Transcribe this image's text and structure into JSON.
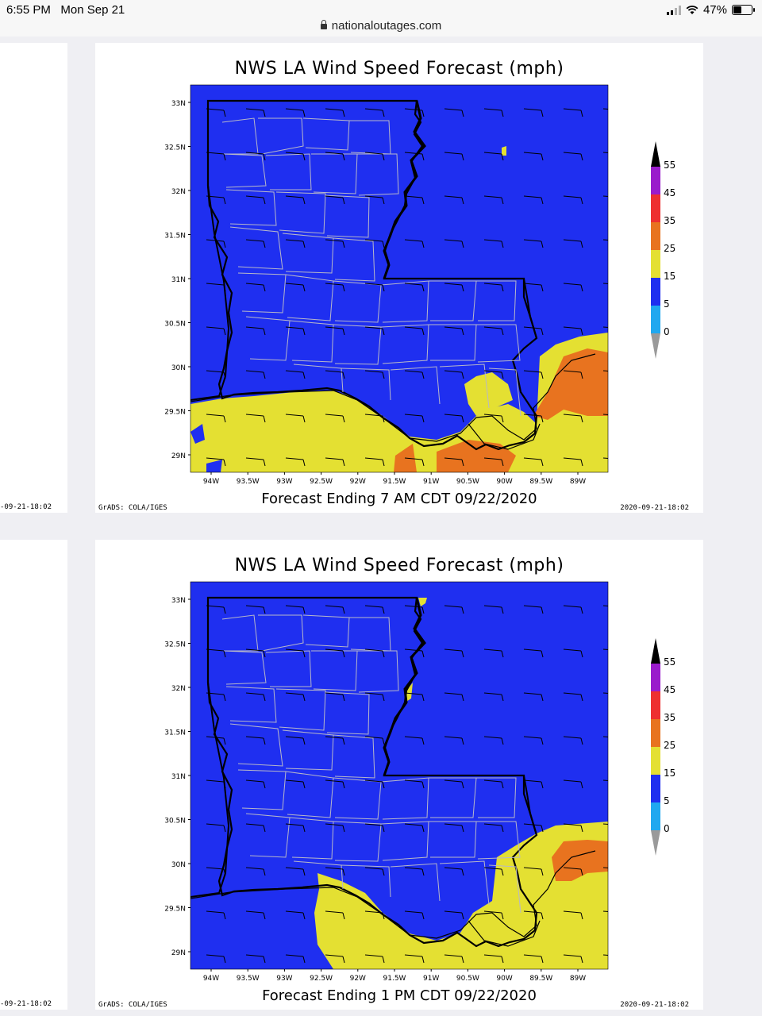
{
  "status_bar": {
    "time": "6:55 PM",
    "date": "Mon Sep 21",
    "battery": "47%",
    "battery_level": 0.47
  },
  "browser": {
    "url": "nationaloutages.com"
  },
  "colors": {
    "blue": "#1f2ff0",
    "yellow": "#e4e032",
    "orange": "#e8731f",
    "red": "#ee3030",
    "purple": "#9a1ccc",
    "cyan": "#20a8f0",
    "black": "#000000",
    "grey": "#9a9a9a"
  },
  "maps": [
    {
      "title": "NWS LA Wind Speed Forecast (mph)",
      "footer": "Forecast Ending 7 AM CDT 09/22/2020",
      "credit": "GrADS: COLA/IGES",
      "stamp": "2020-09-21-18:02"
    },
    {
      "title": "NWS LA Wind Speed Forecast (mph)",
      "footer": "Forecast Ending 1 PM CDT 09/22/2020",
      "credit": "GrADS: COLA/IGES",
      "stamp": "2020-09-21-18:02"
    }
  ],
  "side_stamp": "-09-21-18:02",
  "lat_labels": [
    "33N",
    "32.5N",
    "32N",
    "31.5N",
    "31N",
    "30.5N",
    "30N",
    "29.5N",
    "29N"
  ],
  "lon_labels": [
    "94W",
    "93.5W",
    "93W",
    "92.5W",
    "92W",
    "91.5W",
    "91W",
    "90.5W",
    "90W",
    "89.5W",
    "89W"
  ],
  "legend_labels": [
    "55",
    "45",
    "35",
    "25",
    "15",
    "5",
    "0"
  ]
}
